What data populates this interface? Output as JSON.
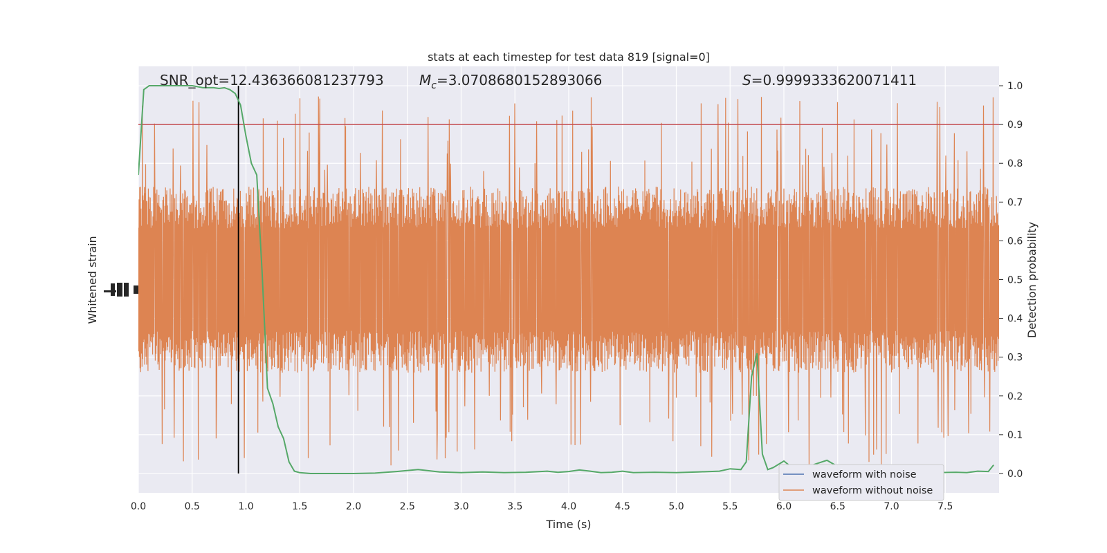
{
  "chart_data": {
    "type": "line",
    "title": "stats at each timestep for test data 819 [signal=0]",
    "xlabel": "Time (s)",
    "ylabel_left": "Whitened strain",
    "ylabel_right": "Detection probability",
    "xlim": [
      0,
      8
    ],
    "ylim_right": [
      -0.05,
      1.05
    ],
    "x_ticks": [
      "0.0",
      "0.5",
      "1.0",
      "1.5",
      "2.0",
      "2.5",
      "3.0",
      "3.5",
      "4.0",
      "4.5",
      "5.0",
      "5.5",
      "6.0",
      "6.5",
      "7.0",
      "7.5"
    ],
    "y_ticks_right": [
      "0.0",
      "0.1",
      "0.2",
      "0.3",
      "0.4",
      "0.5",
      "0.6",
      "0.7",
      "0.8",
      "0.9",
      "1.0"
    ],
    "grid": true,
    "legend_position": "lower-right",
    "annotations": {
      "snr": "SNR_opt=12.436366081237793",
      "mc_symbol": "M",
      "mc_sub": "c",
      "mc_value": "=3.0708680152893066",
      "s_symbol": "S",
      "s_value": "=0.9999333620071411"
    },
    "threshold": {
      "value": 0.9,
      "color": "#c44e52"
    },
    "marker_time": 0.93,
    "series": [
      {
        "name": "waveform with noise",
        "color": "#4c72b0",
        "values": []
      },
      {
        "name": "waveform without noise",
        "color": "#dd8452",
        "center": 0.5,
        "typical_range": [
          0.26,
          0.74
        ],
        "peak_range": [
          0.0,
          1.0
        ]
      },
      {
        "color": "#55a868",
        "x": [
          0,
          0.05,
          0.1,
          0.15,
          0.2,
          0.3,
          0.4,
          0.5,
          0.6,
          0.7,
          0.75,
          0.8,
          0.85,
          0.9,
          0.95,
          1.0,
          1.05,
          1.1,
          1.15,
          1.2,
          1.25,
          1.3,
          1.35,
          1.4,
          1.45,
          1.5,
          1.6,
          1.7,
          1.8,
          1.9,
          2.0,
          2.2,
          2.4,
          2.6,
          2.8,
          3.0,
          3.2,
          3.4,
          3.6,
          3.8,
          3.9,
          4.0,
          4.1,
          4.2,
          4.3,
          4.4,
          4.5,
          4.6,
          4.8,
          5.0,
          5.2,
          5.4,
          5.5,
          5.6,
          5.65,
          5.7,
          5.75,
          5.8,
          5.85,
          5.9,
          6.0,
          6.1,
          6.2,
          6.3,
          6.4,
          6.5,
          6.6,
          6.8,
          7.0,
          7.2,
          7.4,
          7.6,
          7.7,
          7.8,
          7.9,
          7.95
        ],
        "values": [
          0.77,
          0.99,
          1.0,
          1.0,
          1.0,
          1.0,
          1.0,
          1.0,
          0.995,
          0.995,
          0.993,
          0.995,
          0.99,
          0.98,
          0.95,
          0.87,
          0.8,
          0.77,
          0.52,
          0.22,
          0.18,
          0.12,
          0.09,
          0.03,
          0.006,
          0.002,
          0.0,
          0.0,
          0.0,
          0.0,
          0.0,
          0.001,
          0.005,
          0.01,
          0.004,
          0.002,
          0.004,
          0.002,
          0.003,
          0.006,
          0.003,
          0.005,
          0.009,
          0.006,
          0.002,
          0.003,
          0.006,
          0.002,
          0.003,
          0.002,
          0.004,
          0.006,
          0.012,
          0.01,
          0.03,
          0.25,
          0.31,
          0.05,
          0.01,
          0.015,
          0.032,
          0.01,
          0.015,
          0.025,
          0.034,
          0.018,
          0.01,
          0.003,
          0.004,
          0.003,
          0.002,
          0.003,
          0.002,
          0.006,
          0.005,
          0.022
        ]
      }
    ]
  }
}
